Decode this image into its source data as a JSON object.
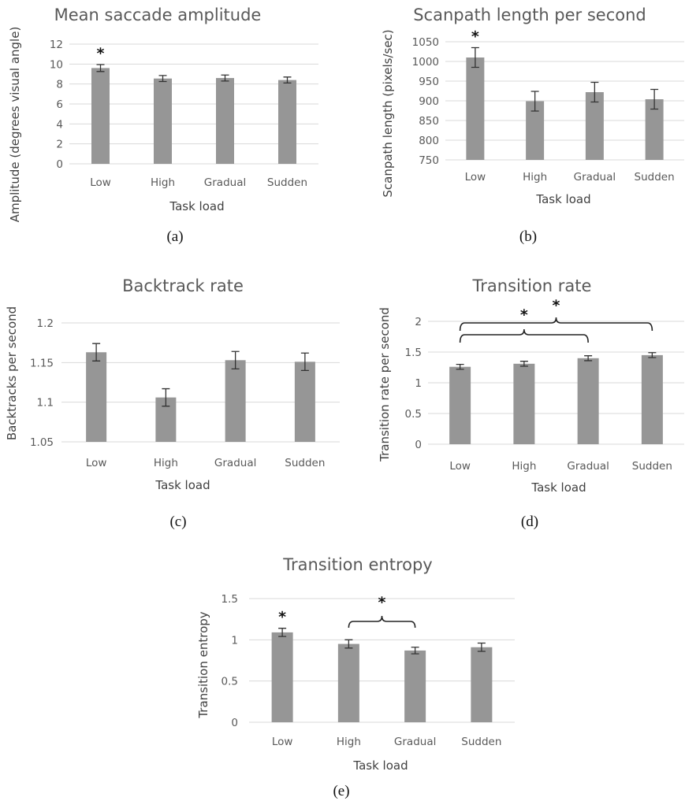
{
  "chart_data": [
    {
      "type": "bar",
      "panel": "(a)",
      "title": "Mean saccade amplitude",
      "xlabel": "Task load",
      "ylabel": "Amplitude (degrees visual angle)",
      "ylim": [
        0,
        12
      ],
      "yticks": [
        0,
        2,
        4,
        6,
        8,
        10,
        12
      ],
      "ytick_labels": [
        "0",
        "2",
        "4",
        "6",
        "8",
        "10",
        "12"
      ],
      "categories": [
        "Low",
        "High",
        "Gradual",
        "Sudden"
      ],
      "values": [
        9.6,
        8.55,
        8.6,
        8.4
      ],
      "errors": [
        0.35,
        0.3,
        0.3,
        0.3
      ],
      "significance": [
        {
          "bars": [
            0
          ],
          "label": "*"
        }
      ],
      "grid": true,
      "bar_color": "#969696"
    },
    {
      "type": "bar",
      "panel": "(b)",
      "title": "Scanpath length per second",
      "xlabel": "Task load",
      "ylabel": "Scanpath length (pixels/sec)",
      "ylim": [
        750,
        1050
      ],
      "yticks": [
        750,
        800,
        850,
        900,
        950,
        1000,
        1050
      ],
      "ytick_labels": [
        "750",
        "800",
        "850",
        "900",
        "950",
        "1000",
        "1050"
      ],
      "categories": [
        "Low",
        "High",
        "Gradual",
        "Sudden"
      ],
      "values": [
        1010,
        899,
        922,
        904
      ],
      "errors": [
        25,
        25,
        25,
        25
      ],
      "significance": [
        {
          "bars": [
            0
          ],
          "label": "*"
        }
      ],
      "grid": true,
      "bar_color": "#969696"
    },
    {
      "type": "bar",
      "panel": "(c)",
      "title": "Backtrack rate",
      "xlabel": "Task load",
      "ylabel": "Backtracks per second",
      "ylim": [
        1.05,
        1.2
      ],
      "yticks": [
        1.05,
        1.1,
        1.15,
        1.2
      ],
      "ytick_labels": [
        "1.05",
        "1.1",
        "1.15",
        "1.2"
      ],
      "categories": [
        "Low",
        "High",
        "Gradual",
        "Sudden"
      ],
      "values": [
        1.163,
        1.106,
        1.153,
        1.151
      ],
      "errors": [
        0.011,
        0.011,
        0.011,
        0.011
      ],
      "significance": [],
      "grid": true,
      "bar_color": "#969696"
    },
    {
      "type": "bar",
      "panel": "(d)",
      "title": "Transition rate",
      "xlabel": "Task load",
      "ylabel": "Transition rate per second",
      "ylim": [
        0,
        2
      ],
      "yticks": [
        0,
        0.5,
        1,
        1.5,
        2
      ],
      "ytick_labels": [
        "0",
        "0.5",
        "1",
        "1.5",
        "2"
      ],
      "categories": [
        "Low",
        "High",
        "Gradual",
        "Sudden"
      ],
      "values": [
        1.26,
        1.31,
        1.4,
        1.45
      ],
      "errors": [
        0.04,
        0.04,
        0.04,
        0.04
      ],
      "significance": [
        {
          "bars": [
            0,
            2
          ],
          "label": "*"
        },
        {
          "bars": [
            0,
            3
          ],
          "label": "*"
        }
      ],
      "grid": true,
      "bar_color": "#969696"
    },
    {
      "type": "bar",
      "panel": "(e)",
      "title": "Transition entropy",
      "xlabel": "Task load",
      "ylabel": "Transition entropy",
      "ylim": [
        0,
        1.5
      ],
      "yticks": [
        0,
        0.5,
        1,
        1.5
      ],
      "ytick_labels": [
        "0",
        "0.5",
        "1",
        "1.5"
      ],
      "categories": [
        "Low",
        "High",
        "Gradual",
        "Sudden"
      ],
      "values": [
        1.09,
        0.95,
        0.87,
        0.91
      ],
      "errors": [
        0.05,
        0.05,
        0.04,
        0.05
      ],
      "significance": [
        {
          "bars": [
            0
          ],
          "label": "*"
        },
        {
          "bars": [
            1,
            2
          ],
          "label": "*"
        }
      ],
      "grid": true,
      "bar_color": "#969696"
    }
  ]
}
